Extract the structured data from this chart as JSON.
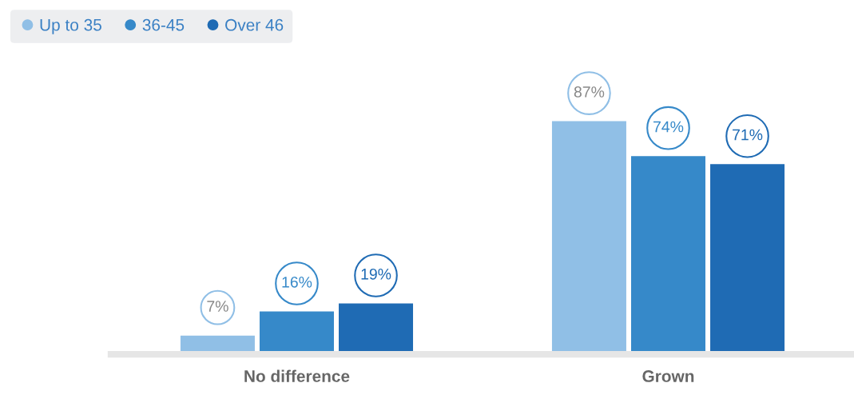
{
  "chart_data": {
    "type": "bar",
    "categories": [
      "No difference",
      "Grown"
    ],
    "series": [
      {
        "name": "Up to 35",
        "color": "#90bfe6",
        "values": [
          7,
          87
        ],
        "value_labels": [
          "7%",
          "87%"
        ]
      },
      {
        "name": "36-45",
        "color": "#3689c9",
        "values": [
          16,
          74
        ],
        "value_labels": [
          "16%",
          "74%"
        ]
      },
      {
        "name": "Over 46",
        "color": "#1f6bb4",
        "values": [
          19,
          71
        ],
        "value_labels": [
          "19%",
          "71%"
        ]
      }
    ],
    "legend": "top left",
    "marker": "circle",
    "grid": false,
    "tick_labels": "x"
  }
}
